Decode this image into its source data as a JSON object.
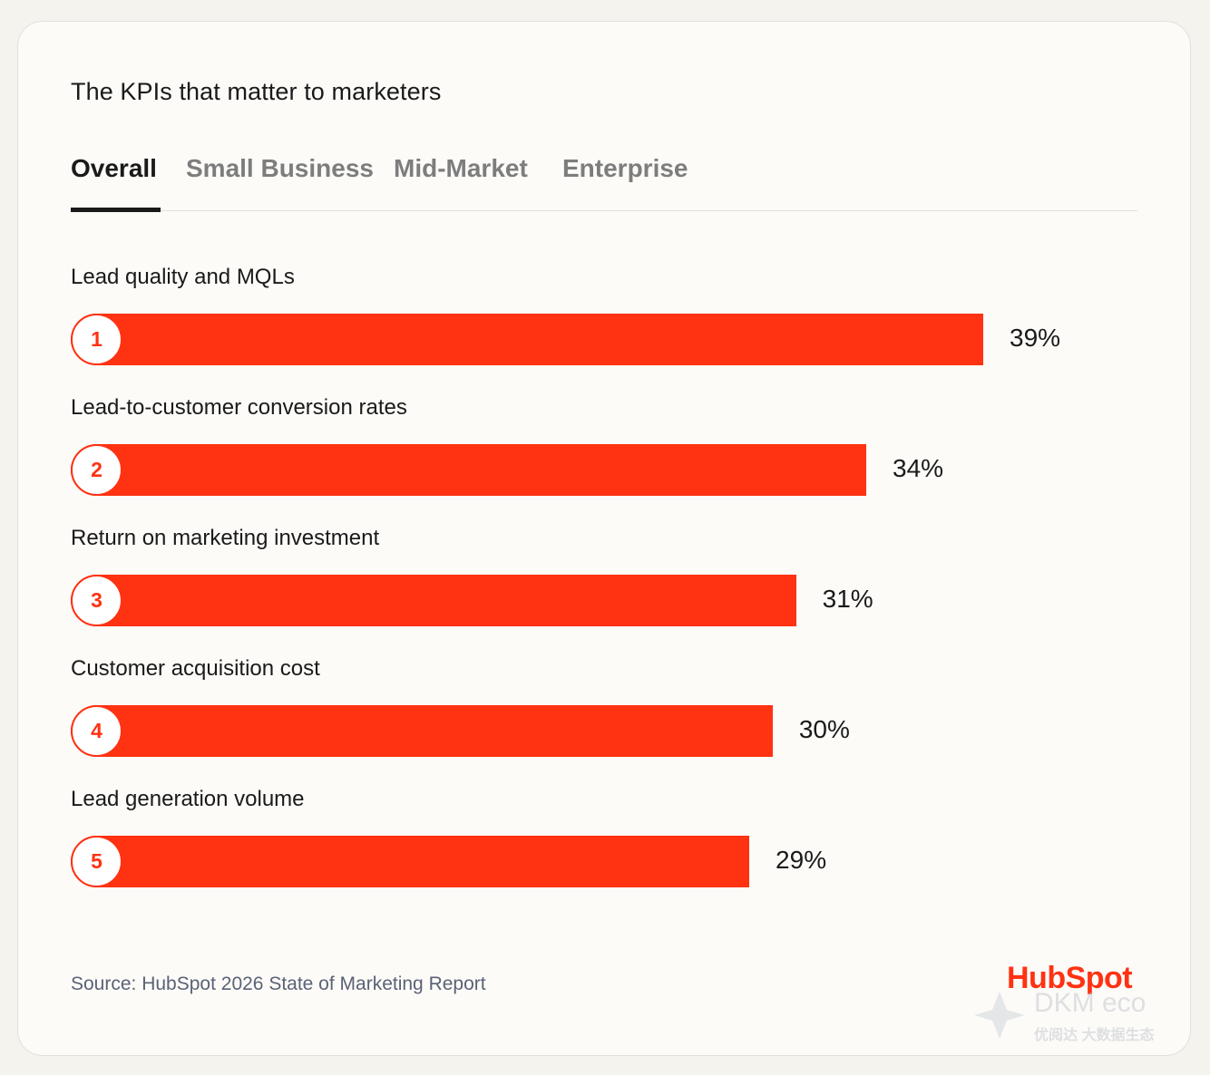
{
  "title": "The KPIs that matter to marketers",
  "tabs": [
    {
      "label": "Overall",
      "active": true
    },
    {
      "label": "Small Business",
      "active": false
    },
    {
      "label": "Mid-Market",
      "active": false
    },
    {
      "label": "Enterprise",
      "active": false
    }
  ],
  "chart_data": {
    "type": "bar",
    "orientation": "horizontal",
    "title": "The KPIs that matter to marketers",
    "categories": [
      "Lead quality and MQLs",
      "Lead-to-customer conversion rates",
      "Return on marketing investment",
      "Customer acquisition cost",
      "Lead generation volume"
    ],
    "ranks": [
      "1",
      "2",
      "3",
      "4",
      "5"
    ],
    "values": [
      39,
      34,
      31,
      30,
      29
    ],
    "value_labels": [
      "39%",
      "34%",
      "31%",
      "30%",
      "29%"
    ],
    "unit": "%",
    "bar_color": "#ff3212"
  },
  "source": "Source: HubSpot 2026 State of Marketing Report",
  "logo": {
    "text": "HubSpot",
    "color": "#ff3212"
  },
  "watermark": {
    "line1": "DKM eco",
    "line2": "优阅达 大数据生态"
  }
}
